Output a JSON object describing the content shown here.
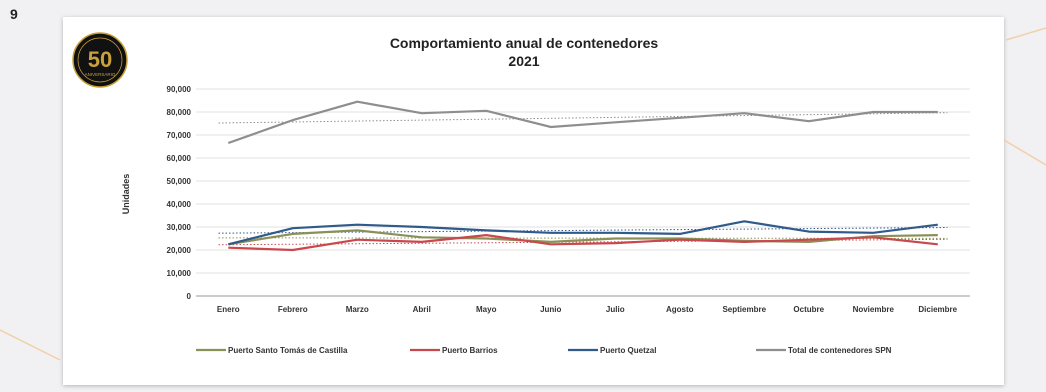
{
  "page": {
    "number": "9"
  },
  "logo": {
    "text": "50",
    "subtext": "ANIVERSARIO"
  },
  "colors": {
    "santo_tomas": "#8a9058",
    "barrios": "#c9484e",
    "quetzal": "#2f5a8a",
    "total": "#8e8e8e",
    "grid": "#d9d9d9",
    "logo_gold": "#c9a13b"
  },
  "chart_data": {
    "type": "line",
    "title": "Comportamiento anual de contenedores",
    "subtitle": "2021",
    "ylabel": "Unidades",
    "xlabel": "",
    "ylim": [
      0,
      90000
    ],
    "y_ticks": [
      "0",
      "10,000",
      "20,000",
      "30,000",
      "40,000",
      "50,000",
      "60,000",
      "70,000",
      "80,000",
      "90,000"
    ],
    "grid": true,
    "legend_position": "bottom",
    "categories": [
      "Enero",
      "Febrero",
      "Marzo",
      "Abril",
      "Mayo",
      "Junio",
      "Julio",
      "Agosto",
      "Septiembre",
      "Octubre",
      "Noviembre",
      "Diciembre"
    ],
    "series": [
      {
        "name": "Puerto Santo Tomás de Castilla",
        "color_key": "santo_tomas",
        "values": [
          22500,
          27000,
          28500,
          25500,
          25000,
          23500,
          25000,
          25000,
          24000,
          23500,
          26000,
          26500
        ]
      },
      {
        "name": "Puerto Barrios",
        "color_key": "barrios",
        "values": [
          21000,
          20000,
          24500,
          23500,
          26500,
          22500,
          23000,
          24500,
          23500,
          24500,
          25500,
          22500
        ]
      },
      {
        "name": "Puerto Quetzal",
        "color_key": "quetzal",
        "values": [
          22500,
          29500,
          31000,
          30000,
          28500,
          27500,
          27500,
          27000,
          32500,
          28000,
          27500,
          31000
        ]
      },
      {
        "name": "Total de contenedores SPN",
        "color_key": "total",
        "values": [
          66500,
          76500,
          84500,
          79500,
          80500,
          73500,
          75500,
          77500,
          79500,
          76000,
          80000,
          80000
        ]
      }
    ]
  }
}
